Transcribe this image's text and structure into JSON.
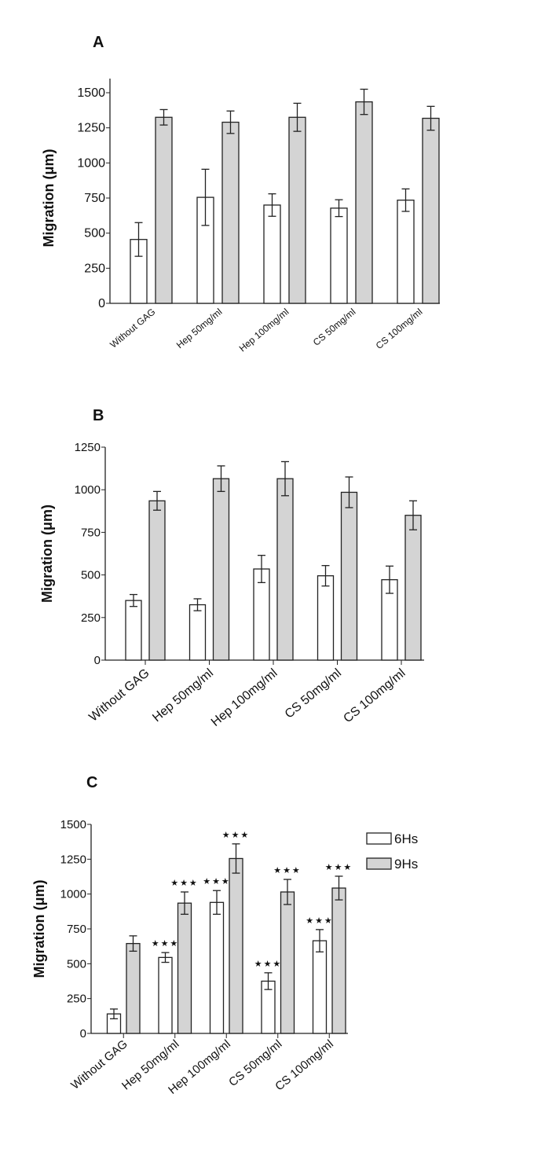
{
  "colors": {
    "bar_6h": "#ffffff",
    "bar_9h": "#d4d4d4",
    "stroke": "#222222"
  },
  "significance_mark": "★★★",
  "chart_data": [
    {
      "type": "bar",
      "panel_label": "A",
      "ylabel": "Migration (μm)",
      "ylim": [
        0,
        1600
      ],
      "yticks": [
        0,
        250,
        500,
        750,
        1000,
        1250,
        1500
      ],
      "categories": [
        "Without GAG",
        "Hep 50mg/ml",
        "Hep 100mg/ml",
        "CS 50mg/ml",
        "CS 100mg/ml"
      ],
      "series": [
        {
          "name": "6Hs",
          "values": [
            455,
            755,
            700,
            678,
            735
          ],
          "errors": [
            120,
            200,
            80,
            60,
            80
          ],
          "significant": [
            false,
            false,
            false,
            false,
            false
          ]
        },
        {
          "name": "9Hs",
          "values": [
            1325,
            1290,
            1325,
            1435,
            1318
          ],
          "errors": [
            55,
            80,
            100,
            90,
            85
          ],
          "significant": [
            false,
            false,
            false,
            false,
            false
          ]
        }
      ],
      "legend": null
    },
    {
      "type": "bar",
      "panel_label": "B",
      "ylabel": "Migration (μm)",
      "ylim": [
        0,
        1250
      ],
      "yticks": [
        0,
        250,
        500,
        750,
        1000,
        1250
      ],
      "categories": [
        "Without GAG",
        "Hep 50mg/ml",
        "Hep 100mg/ml",
        "CS 50mg/ml",
        "CS 100mg/ml"
      ],
      "series": [
        {
          "name": "6Hs",
          "values": [
            350,
            325,
            535,
            495,
            472
          ],
          "errors": [
            35,
            35,
            80,
            60,
            80
          ],
          "significant": [
            false,
            false,
            false,
            false,
            false
          ]
        },
        {
          "name": "9Hs",
          "values": [
            935,
            1065,
            1065,
            985,
            850
          ],
          "errors": [
            55,
            75,
            100,
            90,
            85
          ],
          "significant": [
            false,
            false,
            false,
            false,
            false
          ]
        }
      ],
      "legend": null
    },
    {
      "type": "bar",
      "panel_label": "C",
      "ylabel": "Migration (μm)",
      "ylim": [
        0,
        1500
      ],
      "yticks": [
        0,
        250,
        500,
        750,
        1000,
        1250,
        1500
      ],
      "categories": [
        "Without GAG",
        "Hep 50mg/ml",
        "Hep 100mg/ml",
        "CS 50mg/ml",
        "CS 100mg/ml"
      ],
      "series": [
        {
          "name": "6Hs",
          "values": [
            140,
            545,
            940,
            375,
            665
          ],
          "errors": [
            35,
            35,
            85,
            60,
            80
          ],
          "significant": [
            false,
            true,
            true,
            true,
            true
          ]
        },
        {
          "name": "9Hs",
          "values": [
            645,
            935,
            1255,
            1015,
            1043
          ],
          "errors": [
            55,
            80,
            105,
            90,
            85
          ],
          "significant": [
            false,
            true,
            true,
            true,
            true
          ]
        }
      ],
      "legend": "top-right"
    }
  ]
}
